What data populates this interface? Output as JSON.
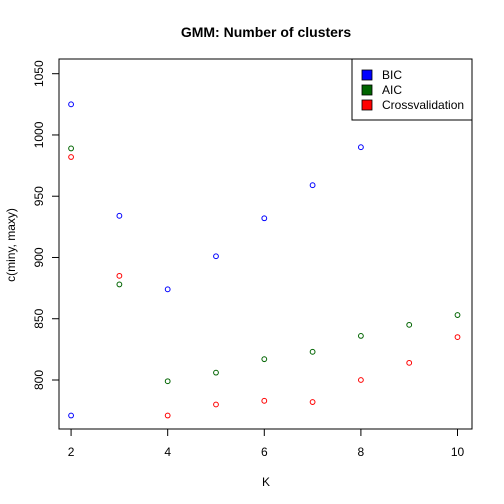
{
  "chart_data": {
    "type": "scatter",
    "title": "GMM: Number of clusters",
    "xlabel": "K",
    "ylabel": "c(miny, maxy)",
    "xlim": [
      1.75,
      10.3
    ],
    "ylim": [
      760,
      1062
    ],
    "x_ticks": [
      "2",
      "4",
      "6",
      "8",
      "10"
    ],
    "y_ticks": [
      "800",
      "850",
      "900",
      "950",
      "1000",
      "1050"
    ],
    "grid": false,
    "legend_position": "top-right",
    "series": [
      {
        "name": "BIC",
        "color": "#0000ff",
        "points": [
          {
            "x": 2,
            "y": 1025
          },
          {
            "x": 3,
            "y": 934
          },
          {
            "x": 4,
            "y": 874
          },
          {
            "x": 5,
            "y": 901
          },
          {
            "x": 6,
            "y": 932
          },
          {
            "x": 7,
            "y": 959
          },
          {
            "x": 8,
            "y": 990
          }
        ]
      },
      {
        "name": "AIC",
        "color": "#006400",
        "points": [
          {
            "x": 2,
            "y": 989
          },
          {
            "x": 3,
            "y": 878
          },
          {
            "x": 4,
            "y": 799
          },
          {
            "x": 5,
            "y": 806
          },
          {
            "x": 6,
            "y": 817
          },
          {
            "x": 7,
            "y": 823
          },
          {
            "x": 8,
            "y": 836
          },
          {
            "x": 9,
            "y": 845
          },
          {
            "x": 10,
            "y": 853
          }
        ]
      },
      {
        "name": "Crossvalidation",
        "color": "#ff0000",
        "points": [
          {
            "x": 2,
            "y": 982
          },
          {
            "x": 3,
            "y": 885
          },
          {
            "x": 4,
            "y": 771
          },
          {
            "x": 5,
            "y": 780
          },
          {
            "x": 6,
            "y": 783
          },
          {
            "x": 7,
            "y": 782
          },
          {
            "x": 8,
            "y": 800
          },
          {
            "x": 9,
            "y": 814
          },
          {
            "x": 10,
            "y": 835
          }
        ]
      },
      {
        "name": "",
        "color": "#0000ff",
        "points": [
          {
            "x": 2,
            "y": 771
          }
        ]
      }
    ]
  }
}
